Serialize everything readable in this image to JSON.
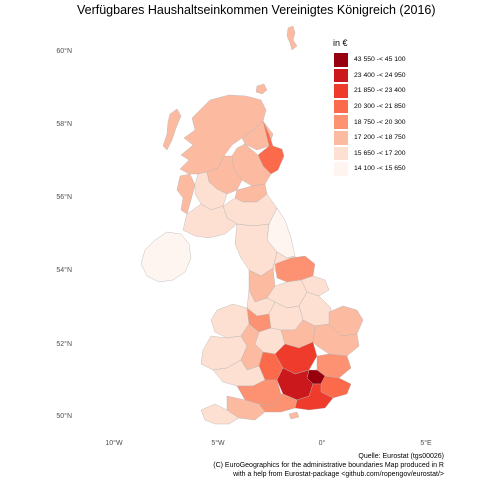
{
  "title": "Verfügbares Haushaltseinkommen Vereinigtes Königreich (2016)",
  "axes": {
    "y_ticks": [
      "60°N",
      "58°N",
      "56°N",
      "54°N",
      "52°N",
      "50°N"
    ],
    "x_ticks": [
      "10°W",
      "5°W",
      "0°",
      "5°E"
    ]
  },
  "legend": {
    "title": "in €",
    "classes": [
      {
        "label": "43 550 -< 45 100",
        "color": "#99000d"
      },
      {
        "label": "23 400 -< 24 950",
        "color": "#cb181d"
      },
      {
        "label": "21 850 -< 23 400",
        "color": "#ef3b2c"
      },
      {
        "label": "20 300 -< 21 850",
        "color": "#fb6a4a"
      },
      {
        "label": "18 750 -< 20 300",
        "color": "#fc9272"
      },
      {
        "label": "17 200 -< 18 750",
        "color": "#fcbba1"
      },
      {
        "label": "15 650 -< 17 200",
        "color": "#fee0d2"
      },
      {
        "label": "14 100 -< 15 650",
        "color": "#fff5f0"
      }
    ]
  },
  "caption": {
    "line1": "Quelle: Eurostat (tgs00026)",
    "line2": "(C) EuroGeographics for the administrative boundaries Map produced in R",
    "line3": "with a help from Eurostat-package <github.com/ropengov/eurostat/>"
  },
  "colors": {
    "border": "#b3b3b3",
    "background": "#ffffff"
  }
}
